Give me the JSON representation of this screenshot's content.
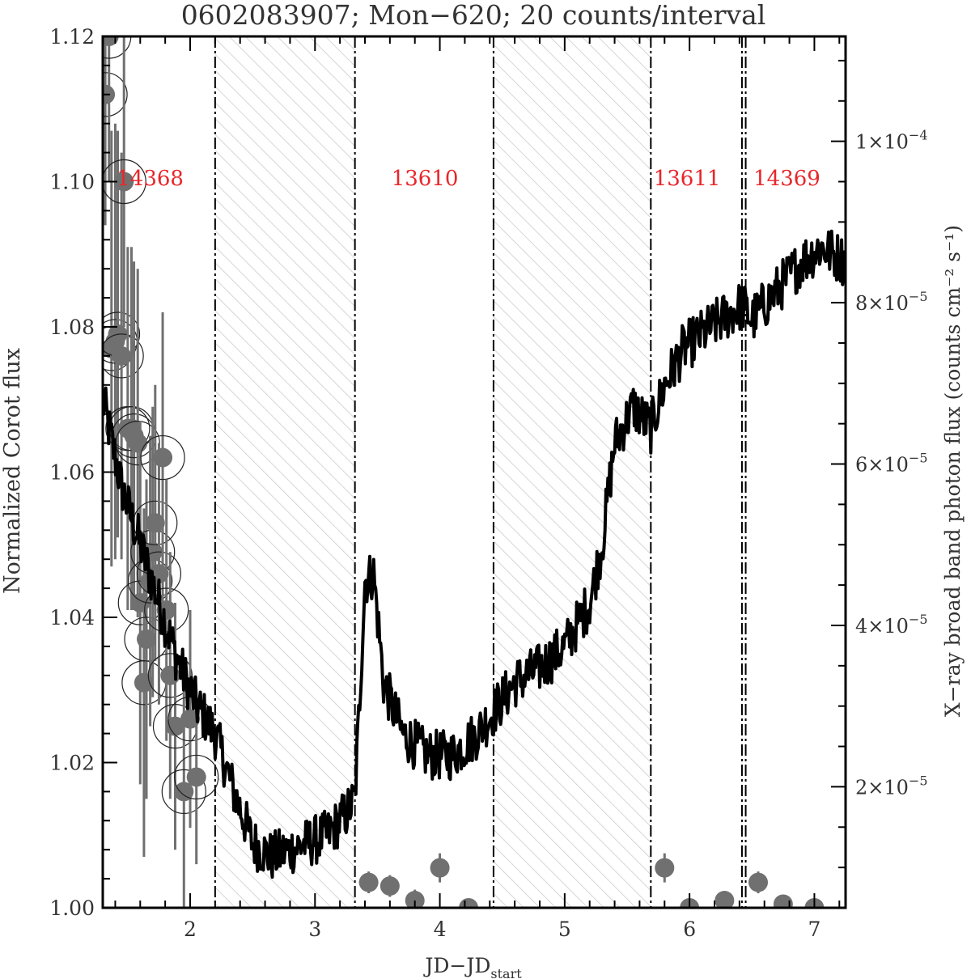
{
  "chart_data": {
    "type": "line",
    "title": "0602083907; Mon−620; 20 counts/interval",
    "xlabel": "JD−JD",
    "xlabel_subscript": "start",
    "ylabel_left": "Normalized Corot flux",
    "ylabel_right": "X−ray broad band photon flux (counts cm⁻² s⁻¹)",
    "xlim": [
      1.3,
      7.25
    ],
    "ylim_left": [
      1.0,
      1.12
    ],
    "ylim_right": [
      5e-06,
      0.000113
    ],
    "x_ticks": [
      2,
      3,
      4,
      5,
      6,
      7
    ],
    "x_tick_labels": [
      "2",
      "3",
      "4",
      "5",
      "6",
      "7"
    ],
    "y_ticks_left": [
      1.0,
      1.02,
      1.04,
      1.06,
      1.08,
      1.1,
      1.12
    ],
    "y_tick_labels_left": [
      "1.00",
      "1.02",
      "1.04",
      "1.06",
      "1.08",
      "1.10",
      "1.12"
    ],
    "y_ticks_right": [
      2e-05,
      4e-05,
      6e-05,
      8e-05,
      0.0001
    ],
    "y_tick_labels_right": [
      {
        "mant": "2×10",
        "exp": "−5"
      },
      {
        "mant": "4×10",
        "exp": "−5"
      },
      {
        "mant": "6×10",
        "exp": "−5"
      },
      {
        "mant": "8×10",
        "exp": "−5"
      },
      {
        "mant": "1×10",
        "exp": "−4"
      }
    ],
    "hatched_gaps": [
      [
        2.2,
        3.32
      ],
      [
        4.43,
        5.69
      ]
    ],
    "boundaries": [
      2.2,
      3.32,
      4.43,
      5.69,
      6.42,
      6.45
    ],
    "obsid_labels": [
      {
        "text": "14368",
        "x": 1.68,
        "y": 1.0995
      },
      {
        "text": "13610",
        "x": 3.88,
        "y": 1.0995
      },
      {
        "text": "13611",
        "x": 5.98,
        "y": 1.0995
      },
      {
        "text": "14369",
        "x": 6.78,
        "y": 1.0995
      }
    ],
    "colors": {
      "corot": "#000000",
      "xray": "#707070",
      "obsid": "#e8262a",
      "hatch": "#c8c8c8"
    },
    "corot_anchors": [
      [
        1.3,
        1.07
      ],
      [
        1.45,
        1.058
      ],
      [
        1.6,
        1.05
      ],
      [
        1.75,
        1.042
      ],
      [
        1.9,
        1.034
      ],
      [
        2.05,
        1.028
      ],
      [
        2.2,
        1.024
      ],
      [
        2.35,
        1.016
      ],
      [
        2.5,
        1.009
      ],
      [
        2.65,
        1.007
      ],
      [
        2.8,
        1.008
      ],
      [
        2.95,
        1.009
      ],
      [
        3.1,
        1.01
      ],
      [
        3.25,
        1.013
      ],
      [
        3.32,
        1.015
      ],
      [
        3.35,
        1.026
      ],
      [
        3.4,
        1.045
      ],
      [
        3.47,
        1.046
      ],
      [
        3.55,
        1.031
      ],
      [
        3.7,
        1.024
      ],
      [
        3.9,
        1.021
      ],
      [
        4.1,
        1.021
      ],
      [
        4.3,
        1.024
      ],
      [
        4.43,
        1.027
      ],
      [
        4.6,
        1.031
      ],
      [
        4.8,
        1.033
      ],
      [
        5.0,
        1.036
      ],
      [
        5.2,
        1.042
      ],
      [
        5.3,
        1.05
      ],
      [
        5.4,
        1.064
      ],
      [
        5.55,
        1.069
      ],
      [
        5.69,
        1.066
      ],
      [
        5.8,
        1.072
      ],
      [
        5.95,
        1.077
      ],
      [
        6.1,
        1.079
      ],
      [
        6.25,
        1.081
      ],
      [
        6.42,
        1.083
      ],
      [
        6.5,
        1.081
      ],
      [
        6.7,
        1.085
      ],
      [
        6.9,
        1.089
      ],
      [
        7.05,
        1.091
      ],
      [
        7.25,
        1.089
      ]
    ],
    "xray_points": [
      {
        "x": 1.32,
        "y": 1.112,
        "err": 0.018
      },
      {
        "x": 1.35,
        "y": 1.12,
        "err": 0.02
      },
      {
        "x": 1.37,
        "y": 1.077,
        "err": 0.03
      },
      {
        "x": 1.4,
        "y": 1.078,
        "err": 0.03
      },
      {
        "x": 1.42,
        "y": 1.079,
        "err": 0.028
      },
      {
        "x": 1.45,
        "y": 1.076,
        "err": 0.028
      },
      {
        "x": 1.47,
        "y": 1.1,
        "err": 0.02
      },
      {
        "x": 1.5,
        "y": 1.066,
        "err": 0.025
      },
      {
        "x": 1.53,
        "y": 1.066,
        "err": 0.025
      },
      {
        "x": 1.55,
        "y": 1.065,
        "err": 0.024
      },
      {
        "x": 1.58,
        "y": 1.064,
        "err": 0.024
      },
      {
        "x": 1.6,
        "y": 1.042,
        "err": 0.025
      },
      {
        "x": 1.63,
        "y": 1.031,
        "err": 0.024
      },
      {
        "x": 1.65,
        "y": 1.037,
        "err": 0.022
      },
      {
        "x": 1.68,
        "y": 1.045,
        "err": 0.02
      },
      {
        "x": 1.7,
        "y": 1.049,
        "err": 0.02
      },
      {
        "x": 1.72,
        "y": 1.053,
        "err": 0.019
      },
      {
        "x": 1.75,
        "y": 1.046,
        "err": 0.018
      },
      {
        "x": 1.78,
        "y": 1.062,
        "err": 0.02
      },
      {
        "x": 1.81,
        "y": 1.041,
        "err": 0.018
      },
      {
        "x": 1.84,
        "y": 1.032,
        "err": 0.017
      },
      {
        "x": 1.88,
        "y": 1.025,
        "err": 0.017
      },
      {
        "x": 1.95,
        "y": 1.016,
        "err": 0.016
      },
      {
        "x": 2.0,
        "y": 1.026,
        "err": 0.015
      },
      {
        "x": 2.05,
        "y": 1.018,
        "err": 0.012
      },
      {
        "x": 3.43,
        "y": 1.0035,
        "err": 0.0015
      },
      {
        "x": 3.6,
        "y": 1.003,
        "err": 0.0015
      },
      {
        "x": 3.8,
        "y": 1.001,
        "err": 0.0015
      },
      {
        "x": 4.0,
        "y": 1.0055,
        "err": 0.002
      },
      {
        "x": 4.23,
        "y": 1.0,
        "err": 0.0012
      },
      {
        "x": 5.8,
        "y": 1.0055,
        "err": 0.002
      },
      {
        "x": 6.0,
        "y": 1.0,
        "err": 0.0012
      },
      {
        "x": 6.28,
        "y": 1.001,
        "err": 0.0012
      },
      {
        "x": 6.55,
        "y": 1.0035,
        "err": 0.0015
      },
      {
        "x": 6.75,
        "y": 1.0005,
        "err": 0.0012
      },
      {
        "x": 7.0,
        "y": 1.0,
        "err": 0.0012
      }
    ]
  }
}
